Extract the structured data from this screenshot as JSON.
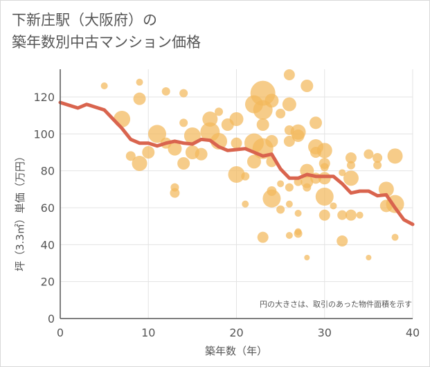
{
  "title_line1": "下新庄駅（大阪府）の",
  "title_line2": "築年数別中古マンション価格",
  "chart_data": {
    "type": "scatter",
    "title": "下新庄駅（大阪府）の 築年数別中古マンション価格",
    "xlabel": "築年数（年）",
    "ylabel": "坪（3.3㎡）単価（万円）",
    "xlim": [
      0,
      40
    ],
    "ylim": [
      0,
      135
    ],
    "xticks": [
      0,
      10,
      20,
      30,
      40
    ],
    "yticks": [
      0,
      20,
      40,
      60,
      80,
      100,
      120
    ],
    "grid": true,
    "note": "円の大きさは、取引のあった物件面積を示す",
    "colors": {
      "bubble": "#f2b85c",
      "line": "#d9644e",
      "grid": "#e3e3e3",
      "axis": "#555555"
    },
    "bubbles": [
      {
        "x": 5,
        "y": 126,
        "s": 5
      },
      {
        "x": 9,
        "y": 128,
        "s": 5
      },
      {
        "x": 12,
        "y": 123,
        "s": 6
      },
      {
        "x": 14,
        "y": 122,
        "s": 6
      },
      {
        "x": 9,
        "y": 119,
        "s": 9
      },
      {
        "x": 7,
        "y": 108,
        "s": 12
      },
      {
        "x": 9,
        "y": 84,
        "s": 11
      },
      {
        "x": 8,
        "y": 88,
        "s": 7
      },
      {
        "x": 10,
        "y": 90,
        "s": 9
      },
      {
        "x": 11,
        "y": 100,
        "s": 13
      },
      {
        "x": 12,
        "y": 95,
        "s": 8
      },
      {
        "x": 13,
        "y": 92,
        "s": 10
      },
      {
        "x": 14,
        "y": 106,
        "s": 6
      },
      {
        "x": 14,
        "y": 84,
        "s": 9
      },
      {
        "x": 13,
        "y": 71,
        "s": 6
      },
      {
        "x": 13,
        "y": 68,
        "s": 7
      },
      {
        "x": 15,
        "y": 99,
        "s": 12
      },
      {
        "x": 15,
        "y": 90,
        "s": 10
      },
      {
        "x": 16,
        "y": 89,
        "s": 9
      },
      {
        "x": 17,
        "y": 108,
        "s": 11
      },
      {
        "x": 17,
        "y": 101,
        "s": 14
      },
      {
        "x": 18,
        "y": 112,
        "s": 6
      },
      {
        "x": 18,
        "y": 96,
        "s": 12
      },
      {
        "x": 19,
        "y": 105,
        "s": 9
      },
      {
        "x": 20,
        "y": 108,
        "s": 10
      },
      {
        "x": 20,
        "y": 95,
        "s": 8
      },
      {
        "x": 20,
        "y": 78,
        "s": 12
      },
      {
        "x": 21,
        "y": 62,
        "s": 5
      },
      {
        "x": 21,
        "y": 77,
        "s": 6
      },
      {
        "x": 22,
        "y": 95,
        "s": 14
      },
      {
        "x": 22,
        "y": 116,
        "s": 13
      },
      {
        "x": 22,
        "y": 85,
        "s": 10
      },
      {
        "x": 23,
        "y": 122,
        "s": 18
      },
      {
        "x": 23,
        "y": 113,
        "s": 14
      },
      {
        "x": 23,
        "y": 105,
        "s": 9
      },
      {
        "x": 23,
        "y": 92,
        "s": 15
      },
      {
        "x": 23,
        "y": 44,
        "s": 8
      },
      {
        "x": 24,
        "y": 118,
        "s": 10
      },
      {
        "x": 24,
        "y": 96,
        "s": 9
      },
      {
        "x": 24,
        "y": 85,
        "s": 8
      },
      {
        "x": 24,
        "y": 69,
        "s": 7
      },
      {
        "x": 24,
        "y": 65,
        "s": 13
      },
      {
        "x": 25,
        "y": 73,
        "s": 5
      },
      {
        "x": 25,
        "y": 59,
        "s": 6
      },
      {
        "x": 25,
        "y": 111,
        "s": 7
      },
      {
        "x": 26,
        "y": 132,
        "s": 8
      },
      {
        "x": 26,
        "y": 116,
        "s": 10
      },
      {
        "x": 26,
        "y": 102,
        "s": 7
      },
      {
        "x": 26,
        "y": 96,
        "s": 8
      },
      {
        "x": 26,
        "y": 71,
        "s": 6
      },
      {
        "x": 26,
        "y": 62,
        "s": 5
      },
      {
        "x": 26,
        "y": 45,
        "s": 5
      },
      {
        "x": 27,
        "y": 101,
        "s": 11
      },
      {
        "x": 27,
        "y": 99,
        "s": 9
      },
      {
        "x": 27,
        "y": 74,
        "s": 6
      },
      {
        "x": 27,
        "y": 57,
        "s": 5
      },
      {
        "x": 27,
        "y": 47,
        "s": 5
      },
      {
        "x": 27,
        "y": 46,
        "s": 6
      },
      {
        "x": 28,
        "y": 126,
        "s": 9
      },
      {
        "x": 28,
        "y": 80,
        "s": 10
      },
      {
        "x": 28,
        "y": 74,
        "s": 9
      },
      {
        "x": 28,
        "y": 71,
        "s": 6
      },
      {
        "x": 28,
        "y": 33,
        "s": 4
      },
      {
        "x": 29,
        "y": 106,
        "s": 9
      },
      {
        "x": 29,
        "y": 93,
        "s": 11
      },
      {
        "x": 29,
        "y": 90,
        "s": 8
      },
      {
        "x": 29,
        "y": 76,
        "s": 8
      },
      {
        "x": 30,
        "y": 91,
        "s": 11
      },
      {
        "x": 30,
        "y": 84,
        "s": 8
      },
      {
        "x": 30,
        "y": 82,
        "s": 6
      },
      {
        "x": 30,
        "y": 76,
        "s": 9
      },
      {
        "x": 30,
        "y": 66,
        "s": 13
      },
      {
        "x": 30,
        "y": 56,
        "s": 8
      },
      {
        "x": 31,
        "y": 61,
        "s": 5
      },
      {
        "x": 32,
        "y": 56,
        "s": 7
      },
      {
        "x": 32,
        "y": 42,
        "s": 8
      },
      {
        "x": 32,
        "y": 79,
        "s": 5
      },
      {
        "x": 33,
        "y": 87,
        "s": 8
      },
      {
        "x": 33,
        "y": 83,
        "s": 6
      },
      {
        "x": 33,
        "y": 76,
        "s": 11
      },
      {
        "x": 33,
        "y": 56,
        "s": 8
      },
      {
        "x": 34,
        "y": 56,
        "s": 5
      },
      {
        "x": 35,
        "y": 89,
        "s": 7
      },
      {
        "x": 35,
        "y": 33,
        "s": 4
      },
      {
        "x": 36,
        "y": 87,
        "s": 7
      },
      {
        "x": 36,
        "y": 83,
        "s": 6
      },
      {
        "x": 37,
        "y": 70,
        "s": 11
      },
      {
        "x": 37,
        "y": 61,
        "s": 9
      },
      {
        "x": 38,
        "y": 88,
        "s": 11
      },
      {
        "x": 38,
        "y": 62,
        "s": 13
      },
      {
        "x": 38,
        "y": 44,
        "s": 5
      }
    ],
    "series": [
      {
        "x": [
          0,
          1,
          2,
          3,
          4,
          5,
          6,
          7,
          8,
          9,
          10,
          11,
          12,
          13,
          14,
          15,
          16,
          17,
          18,
          19,
          20,
          21,
          22,
          23,
          24,
          25,
          26,
          27,
          28,
          29,
          30,
          31,
          32,
          33,
          34,
          35,
          36,
          37,
          38,
          39,
          40
        ],
        "y": [
          117,
          115.5,
          114,
          116,
          114.5,
          113,
          108,
          103,
          97,
          95,
          95,
          93.5,
          95,
          96,
          95,
          94.5,
          97,
          96.5,
          93,
          91,
          91.5,
          92,
          90,
          88,
          89,
          81,
          76,
          76,
          78,
          77,
          77,
          77,
          73,
          68,
          69,
          69,
          66.5,
          67,
          60,
          53.5,
          51
        ]
      }
    ]
  }
}
